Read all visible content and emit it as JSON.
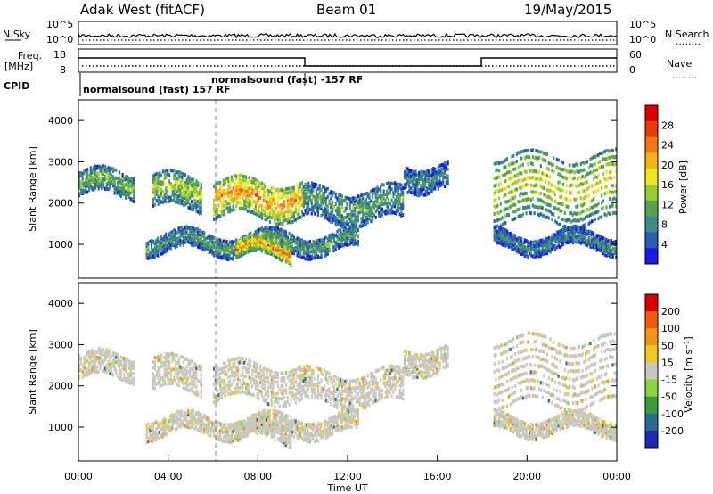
{
  "header": {
    "station": "Adak West (fitACF)",
    "beam": "Beam 01",
    "date": "19/May/2015"
  },
  "panels": {
    "nsky": {
      "left_label": "N.Sky",
      "left_ticks": [
        "10^5",
        "10^0"
      ],
      "right_ticks": [
        "10^5",
        "10^0"
      ],
      "right_label": "N.Search",
      "right_marker": "........"
    },
    "freq": {
      "left_label_1": "Freq.",
      "left_label_2": "[MHz]",
      "left_ticks": [
        "18",
        "8"
      ],
      "right_ticks": [
        "60",
        "0"
      ],
      "right_label": "Nave",
      "right_marker": "........"
    },
    "cpid": {
      "label": "CPID",
      "mode_1": "normalsound (fast) 157 RF",
      "mode_2": "normalsound (fast) -157 RF"
    }
  },
  "chart_data": [
    {
      "type": "heatmap",
      "title": "",
      "quantity": "Power",
      "ylabel": "Slant Range [km]",
      "xlabel": "Time UT",
      "xlim": [
        "00:00",
        "24:00"
      ],
      "ylim": [
        180,
        4500
      ],
      "y_ticks": [
        "4000",
        "3000",
        "2000",
        "1000"
      ],
      "colorbar": {
        "label": "Power [dB]",
        "ticks": [
          "28",
          "24",
          "20",
          "16",
          "12",
          "8",
          "4"
        ],
        "range": [
          0,
          30
        ],
        "colors": [
          "#1a1ae6",
          "#2a5cb4",
          "#3c8a8a",
          "#5aa050",
          "#9acc32",
          "#f0e61e",
          "#f5b414",
          "#f0780f",
          "#e63c0a",
          "#dc0000"
        ]
      },
      "echo_bands": [
        {
          "t_start": 0.0,
          "t_end": 2.5,
          "range_km": [
            2200,
            2800
          ],
          "power_db": 12
        },
        {
          "t_start": 3.3,
          "t_end": 5.5,
          "range_km": [
            1900,
            2700
          ],
          "power_db": 14
        },
        {
          "t_start": 6.0,
          "t_end": 10.0,
          "range_km": [
            1700,
            2600
          ],
          "power_db": 22
        },
        {
          "t_start": 10.0,
          "t_end": 14.5,
          "range_km": [
            1600,
            2400
          ],
          "power_db": 10
        },
        {
          "t_start": 14.5,
          "t_end": 16.5,
          "range_km": [
            2400,
            3000
          ],
          "power_db": 8
        },
        {
          "t_start": 18.5,
          "t_end": 24.0,
          "range_km": [
            1600,
            3300
          ],
          "power_db": 16
        },
        {
          "t_start": 3.0,
          "t_end": 12.5,
          "range_km": [
            850,
            1300
          ],
          "power_db": 10
        },
        {
          "t_start": 7.0,
          "t_end": 9.5,
          "range_km": [
            700,
            1100
          ],
          "power_db": 22
        },
        {
          "t_start": 18.5,
          "t_end": 24.0,
          "range_km": [
            900,
            1300
          ],
          "power_db": 8
        }
      ]
    },
    {
      "type": "heatmap",
      "title": "",
      "quantity": "Velocity",
      "ylabel": "Slant Range [km]",
      "xlabel": "Time UT",
      "xlim": [
        "00:00",
        "24:00"
      ],
      "ylim": [
        180,
        4500
      ],
      "y_ticks": [
        "4000",
        "3000",
        "2000",
        "1000"
      ],
      "x_ticks": [
        "00:00",
        "04:00",
        "08:00",
        "12:00",
        "16:00",
        "20:00",
        "00:00"
      ],
      "colorbar": {
        "label": "Velocity [m s⁻¹]",
        "ticks": [
          "200",
          "100",
          "50",
          "15",
          "-15",
          "-50",
          "-100",
          "-200"
        ],
        "colors": [
          "#1a2ab4",
          "#2a6a8c",
          "#3c9a3c",
          "#8cd23c",
          "#c8c8c0",
          "#f0c81e",
          "#f09614",
          "#f05a0f",
          "#dc0000"
        ]
      },
      "dominant_velocity_m_s": "-15 to 15"
    }
  ]
}
